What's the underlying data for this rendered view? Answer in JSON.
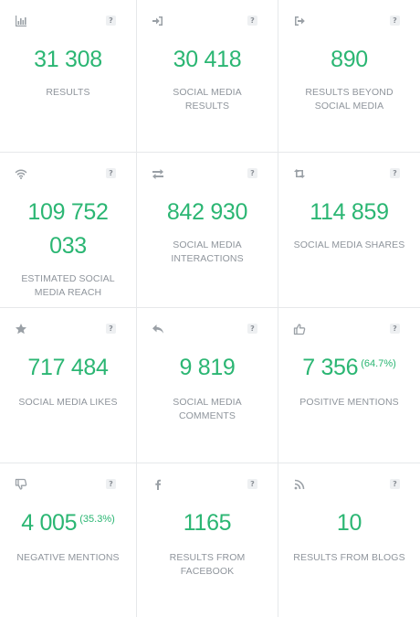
{
  "help_glyph": "?",
  "colors": {
    "value": "#2bb673",
    "label": "#8f959c",
    "icon": "#9aa0a6",
    "border": "#e6e8ea"
  },
  "tiles": [
    {
      "icon": "bar-chart-icon",
      "value": "31 308",
      "label": "RESULTS"
    },
    {
      "icon": "sign-in-icon",
      "value": "30 418",
      "label": "SOCIAL MEDIA RESULTS"
    },
    {
      "icon": "sign-out-icon",
      "value": "890",
      "label": "RESULTS BEYOND SOCIAL MEDIA"
    },
    {
      "icon": "wifi-icon",
      "value_line1": "109 752",
      "value_line2": "033",
      "label": "ESTIMATED SOCIAL MEDIA REACH"
    },
    {
      "icon": "exchange-icon",
      "value": "842 930",
      "label": "SOCIAL MEDIA INTERACTIONS"
    },
    {
      "icon": "retweet-icon",
      "value": "114 859",
      "label": "SOCIAL MEDIA SHARES"
    },
    {
      "icon": "star-icon",
      "value": "717 484",
      "label": "SOCIAL MEDIA LIKES"
    },
    {
      "icon": "reply-icon",
      "value": "9 819",
      "label": "SOCIAL MEDIA COMMENTS"
    },
    {
      "icon": "thumbs-up-icon",
      "value": "7 356",
      "percent": "(64.7%)",
      "label": "POSITIVE MENTIONS"
    },
    {
      "icon": "thumbs-down-icon",
      "value": "4 005",
      "percent": "(35.3%)",
      "label": "NEGATIVE MENTIONS"
    },
    {
      "icon": "facebook-icon",
      "value": "1165",
      "label": "RESULTS FROM FACEBOOK"
    },
    {
      "icon": "rss-icon",
      "value": "10",
      "label": "RESULTS FROM BLOGS"
    }
  ]
}
